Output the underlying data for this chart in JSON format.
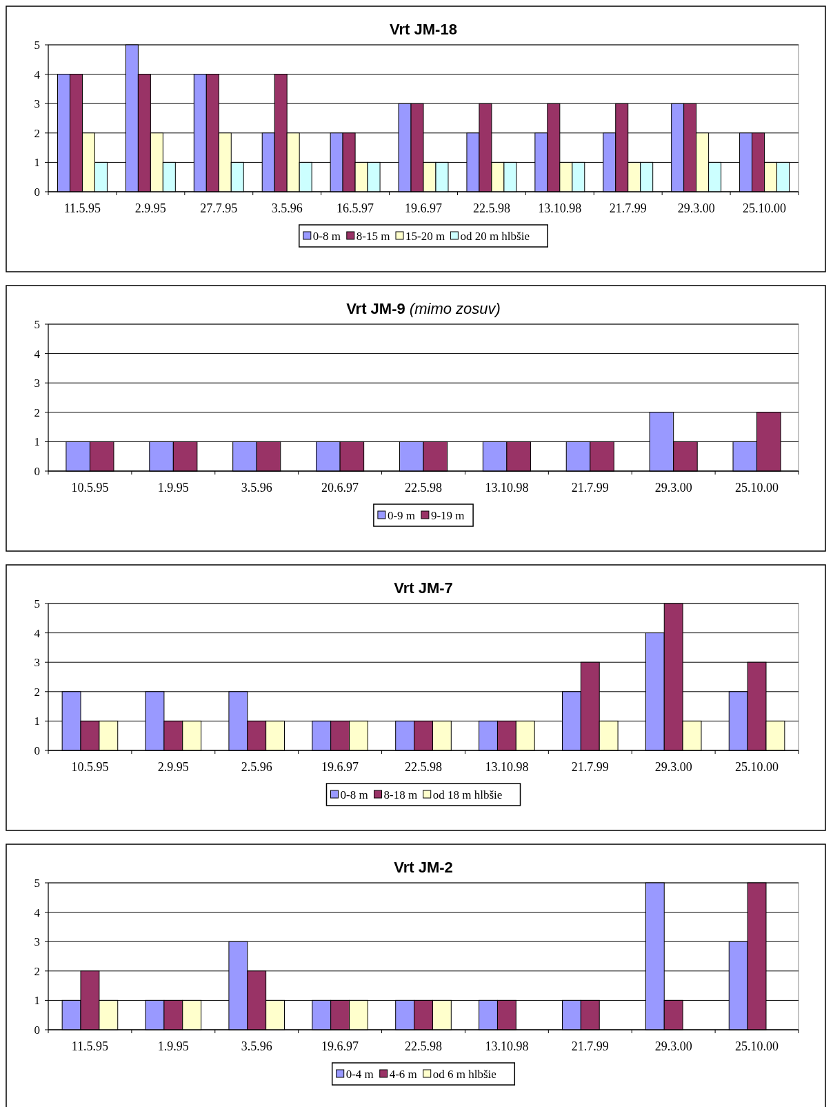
{
  "chart_data": [
    {
      "type": "bar",
      "title": "Vrt JM-18",
      "categories": [
        "11.5.95",
        "2.9.95",
        "27.7.95",
        "3.5.96",
        "16.5.97",
        "19.6.97",
        "22.5.98",
        "13.10.98",
        "21.7.99",
        "29.3.00",
        "25.10.00"
      ],
      "series": [
        {
          "name": "0-8 m",
          "color": "#9999ff",
          "values": [
            4,
            5,
            4,
            2,
            2,
            3,
            2,
            2,
            2,
            3,
            2
          ]
        },
        {
          "name": "8-15 m",
          "color": "#993366",
          "values": [
            4,
            4,
            4,
            4,
            2,
            3,
            3,
            3,
            3,
            3,
            2
          ]
        },
        {
          "name": "15-20 m",
          "color": "#ffffcc",
          "values": [
            2,
            2,
            2,
            2,
            1,
            1,
            1,
            1,
            1,
            2,
            1
          ]
        },
        {
          "name": "od 20 m hlbšie",
          "color": "#ccffff",
          "values": [
            1,
            1,
            1,
            1,
            1,
            1,
            1,
            1,
            1,
            1,
            1
          ]
        }
      ],
      "ylim": [
        0,
        5
      ],
      "yticks": [
        0,
        1,
        2,
        3,
        4,
        5
      ],
      "grid": "y",
      "legend": "bottom"
    },
    {
      "type": "bar",
      "title": "Vrt JM-9",
      "subtitle": "(mimo zosuv)",
      "categories": [
        "10.5.95",
        "1.9.95",
        "3.5.96",
        "20.6.97",
        "22.5.98",
        "13.10.98",
        "21.7.99",
        "29.3.00",
        "25.10.00"
      ],
      "series": [
        {
          "name": "0-9 m",
          "color": "#9999ff",
          "values": [
            1,
            1,
            1,
            1,
            1,
            1,
            1,
            2,
            1
          ]
        },
        {
          "name": "9-19 m",
          "color": "#993366",
          "values": [
            1,
            1,
            1,
            1,
            1,
            1,
            1,
            1,
            2
          ]
        }
      ],
      "ylim": [
        0,
        5
      ],
      "yticks": [
        0,
        1,
        2,
        3,
        4,
        5
      ],
      "grid": "y",
      "legend": "bottom"
    },
    {
      "type": "bar",
      "title": "Vrt JM-7",
      "categories": [
        "10.5.95",
        "2.9.95",
        "2.5.96",
        "19.6.97",
        "22.5.98",
        "13.10.98",
        "21.7.99",
        "29.3.00",
        "25.10.00"
      ],
      "series": [
        {
          "name": "0-8 m",
          "color": "#9999ff",
          "values": [
            2,
            2,
            2,
            1,
            1,
            1,
            2,
            4,
            2
          ]
        },
        {
          "name": "8-18 m",
          "color": "#993366",
          "values": [
            1,
            1,
            1,
            1,
            1,
            1,
            3,
            5,
            3
          ]
        },
        {
          "name": "od 18 m hlbšie",
          "color": "#ffffcc",
          "values": [
            1,
            1,
            1,
            1,
            1,
            1,
            1,
            1,
            1
          ]
        }
      ],
      "ylim": [
        0,
        5
      ],
      "yticks": [
        0,
        1,
        2,
        3,
        4,
        5
      ],
      "grid": "y",
      "legend": "bottom"
    },
    {
      "type": "bar",
      "title": "Vrt JM-2",
      "categories": [
        "11.5.95",
        "1.9.95",
        "3.5.96",
        "19.6.97",
        "22.5.98",
        "13.10.98",
        "21.7.99",
        "29.3.00",
        "25.10.00"
      ],
      "series": [
        {
          "name": "0-4 m",
          "color": "#9999ff",
          "values": [
            1,
            1,
            3,
            1,
            1,
            1,
            1,
            5,
            3
          ]
        },
        {
          "name": "4-6 m",
          "color": "#993366",
          "values": [
            2,
            1,
            2,
            1,
            1,
            1,
            1,
            1,
            5
          ]
        },
        {
          "name": "od 6 m hlbšie",
          "color": "#ffffcc",
          "values": [
            1,
            1,
            1,
            1,
            1,
            null,
            null,
            null,
            null
          ]
        }
      ],
      "ylim": [
        0,
        5
      ],
      "yticks": [
        0,
        1,
        2,
        3,
        4,
        5
      ],
      "grid": "y",
      "legend": "bottom"
    }
  ]
}
